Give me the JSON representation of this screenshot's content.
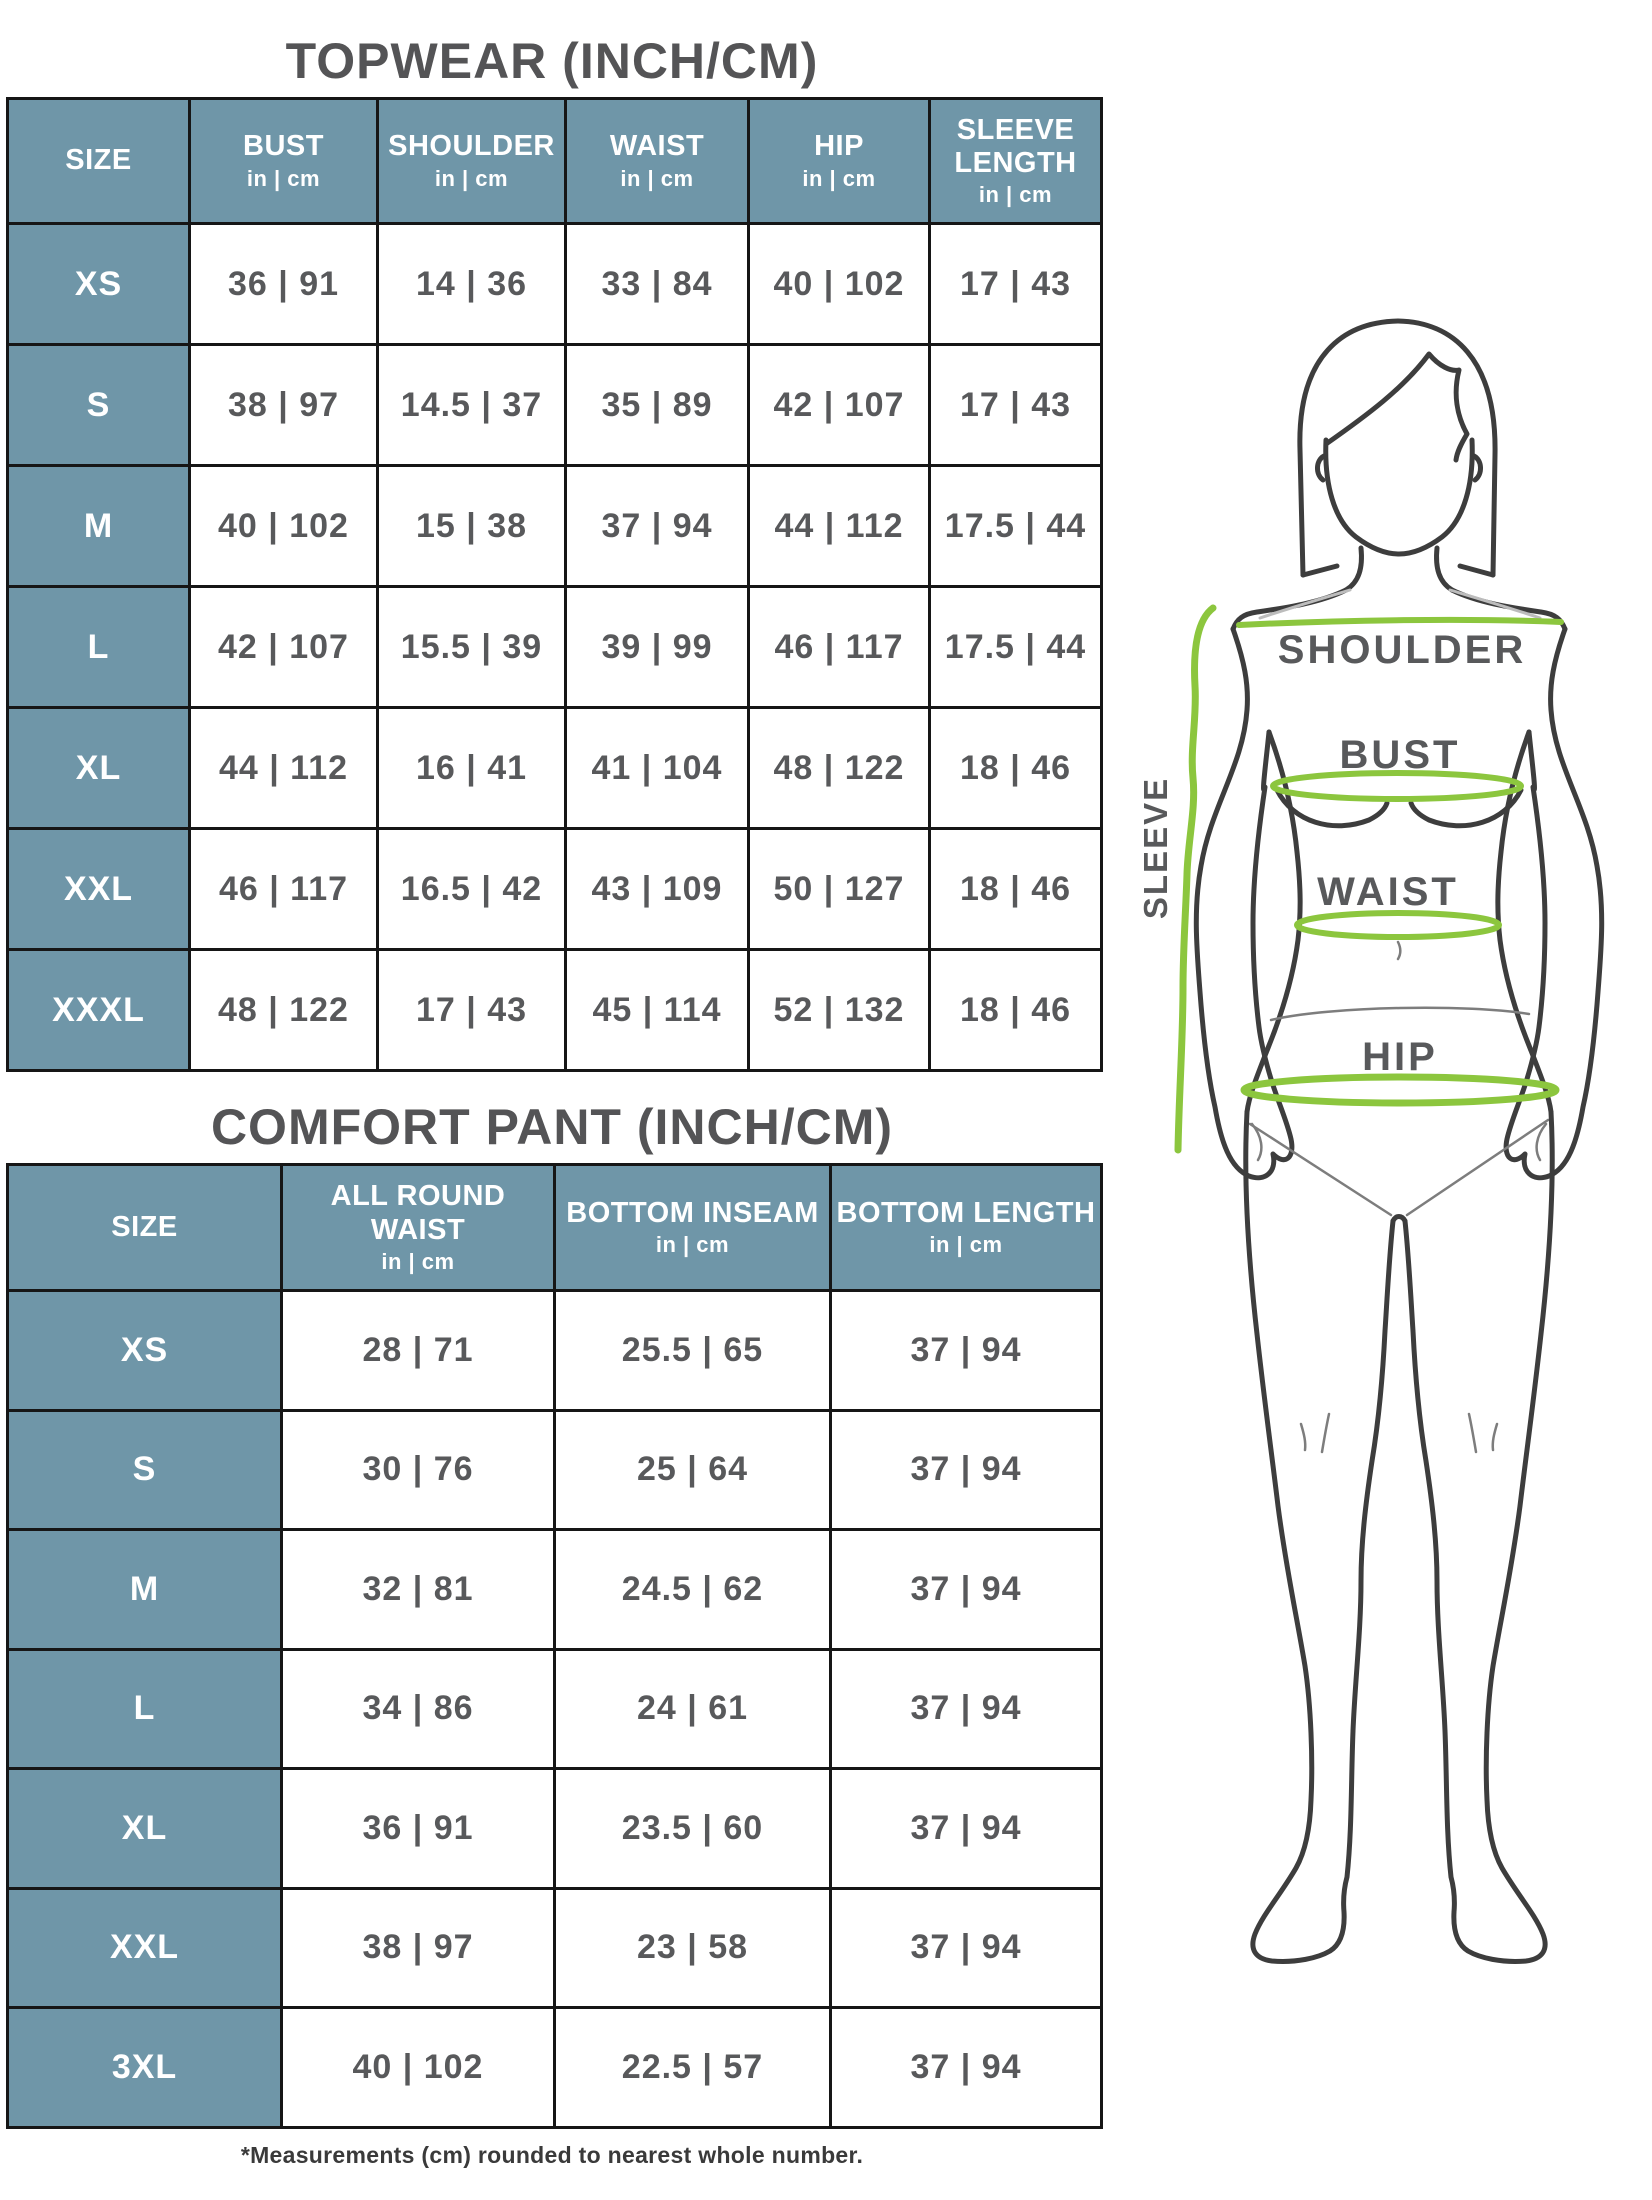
{
  "colors": {
    "header_blue": "#6f96a8",
    "table_border": "#161616",
    "value_text": "#58595b",
    "title_text": "#545456",
    "measure_green": "#8cc63e",
    "body_outline": "#3d3d3d"
  },
  "topwear": {
    "title": "TOPWEAR (INCH/CM)",
    "columns": [
      {
        "label": "SIZE",
        "sub": ""
      },
      {
        "label": "BUST",
        "sub": "in | cm"
      },
      {
        "label": "SHOULDER",
        "sub": "in | cm"
      },
      {
        "label": "WAIST",
        "sub": "in | cm"
      },
      {
        "label": "HIP",
        "sub": "in | cm"
      },
      {
        "label": "SLEEVE LENGTH",
        "sub": "in | cm"
      }
    ],
    "rows": [
      {
        "size": "XS",
        "values": [
          "36 | 91",
          "14 | 36",
          "33 | 84",
          "40 | 102",
          "17 | 43"
        ]
      },
      {
        "size": "S",
        "values": [
          "38 | 97",
          "14.5 | 37",
          "35 | 89",
          "42 | 107",
          "17 | 43"
        ]
      },
      {
        "size": "M",
        "values": [
          "40 | 102",
          "15 | 38",
          "37 | 94",
          "44 | 112",
          "17.5 | 44"
        ]
      },
      {
        "size": "L",
        "values": [
          "42 | 107",
          "15.5 | 39",
          "39 | 99",
          "46 | 117",
          "17.5 | 44"
        ]
      },
      {
        "size": "XL",
        "values": [
          "44 | 112",
          "16 | 41",
          "41 | 104",
          "48 | 122",
          "18 | 46"
        ]
      },
      {
        "size": "XXL",
        "values": [
          "46 | 117",
          "16.5 | 42",
          "43 | 109",
          "50 | 127",
          "18 | 46"
        ]
      },
      {
        "size": "XXXL",
        "values": [
          "48 | 122",
          "17 | 43",
          "45 | 114",
          "52 | 132",
          "18 | 46"
        ]
      }
    ]
  },
  "comfort_pant": {
    "title": "COMFORT PANT (INCH/CM)",
    "columns": [
      {
        "label": "SIZE",
        "sub": ""
      },
      {
        "label": "ALL ROUND WAIST",
        "sub": "in | cm"
      },
      {
        "label": "BOTTOM INSEAM",
        "sub": "in | cm"
      },
      {
        "label": "BOTTOM LENGTH",
        "sub": "in | cm"
      }
    ],
    "rows": [
      {
        "size": "XS",
        "values": [
          "28 | 71",
          "25.5 | 65",
          "37 | 94"
        ]
      },
      {
        "size": "S",
        "values": [
          "30 | 76",
          "25 | 64",
          "37 | 94"
        ]
      },
      {
        "size": "M",
        "values": [
          "32 | 81",
          "24.5 | 62",
          "37 | 94"
        ]
      },
      {
        "size": "L",
        "values": [
          "34 | 86",
          "24 | 61",
          "37 | 94"
        ]
      },
      {
        "size": "XL",
        "values": [
          "36 | 91",
          "23.5 | 60",
          "37 | 94"
        ]
      },
      {
        "size": "XXL",
        "values": [
          "38 | 97",
          "23 | 58",
          "37 | 94"
        ]
      },
      {
        "size": "3XL",
        "values": [
          "40 | 102",
          "22.5 | 57",
          "37 | 94"
        ]
      }
    ]
  },
  "figure": {
    "labels": {
      "shoulder": "SHOULDER",
      "bust": "BUST",
      "waist": "WAIST",
      "hip": "HIP",
      "sleeve": "SLEEVE"
    }
  },
  "footnote": "*Measurements (cm) rounded to nearest whole number."
}
